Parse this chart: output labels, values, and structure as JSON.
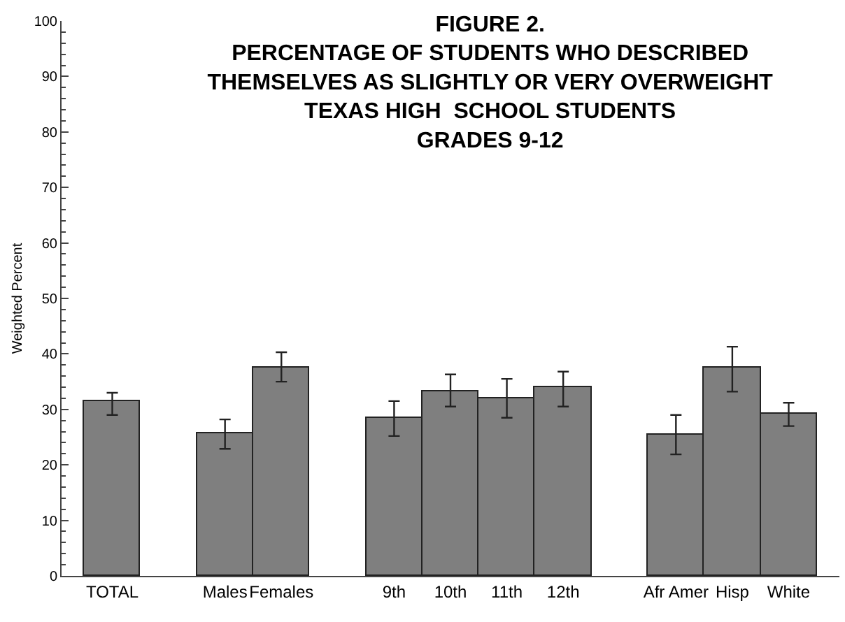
{
  "chart_data": {
    "type": "bar",
    "title": "FIGURE 2.\nPERCENTAGE OF STUDENTS WHO DESCRIBED\nTHEMSELVES AS SLIGHTLY OR VERY OVERWEIGHT\nTEXAS HIGH  SCHOOL STUDENTS\nGRADES 9-12",
    "ylabel": "Weighted Percent",
    "categories": [
      "TOTAL",
      null,
      "Males",
      "Females",
      null,
      "9th",
      "10th",
      "11th",
      "12th",
      null,
      "Afr Amer",
      "Hisp",
      "White"
    ],
    "values": [
      31.5,
      null,
      25.7,
      37.5,
      null,
      28.5,
      33.2,
      32.0,
      34.0,
      null,
      25.4,
      37.5,
      29.2
    ],
    "errors": [
      [
        29.0,
        33.0
      ],
      null,
      [
        22.9,
        28.2
      ],
      [
        35.0,
        40.3
      ],
      null,
      [
        25.2,
        31.5
      ],
      [
        30.5,
        36.3
      ],
      [
        28.5,
        35.5
      ],
      [
        30.5,
        36.8
      ],
      null,
      [
        21.9,
        29.0
      ],
      [
        33.2,
        41.3
      ],
      [
        27.0,
        31.2
      ]
    ],
    "color": "#7f7f7f",
    "ylim": [
      0,
      100
    ],
    "yticks": [
      0,
      10,
      20,
      30,
      40,
      50,
      60,
      70,
      80,
      90,
      100
    ],
    "grid": false
  }
}
